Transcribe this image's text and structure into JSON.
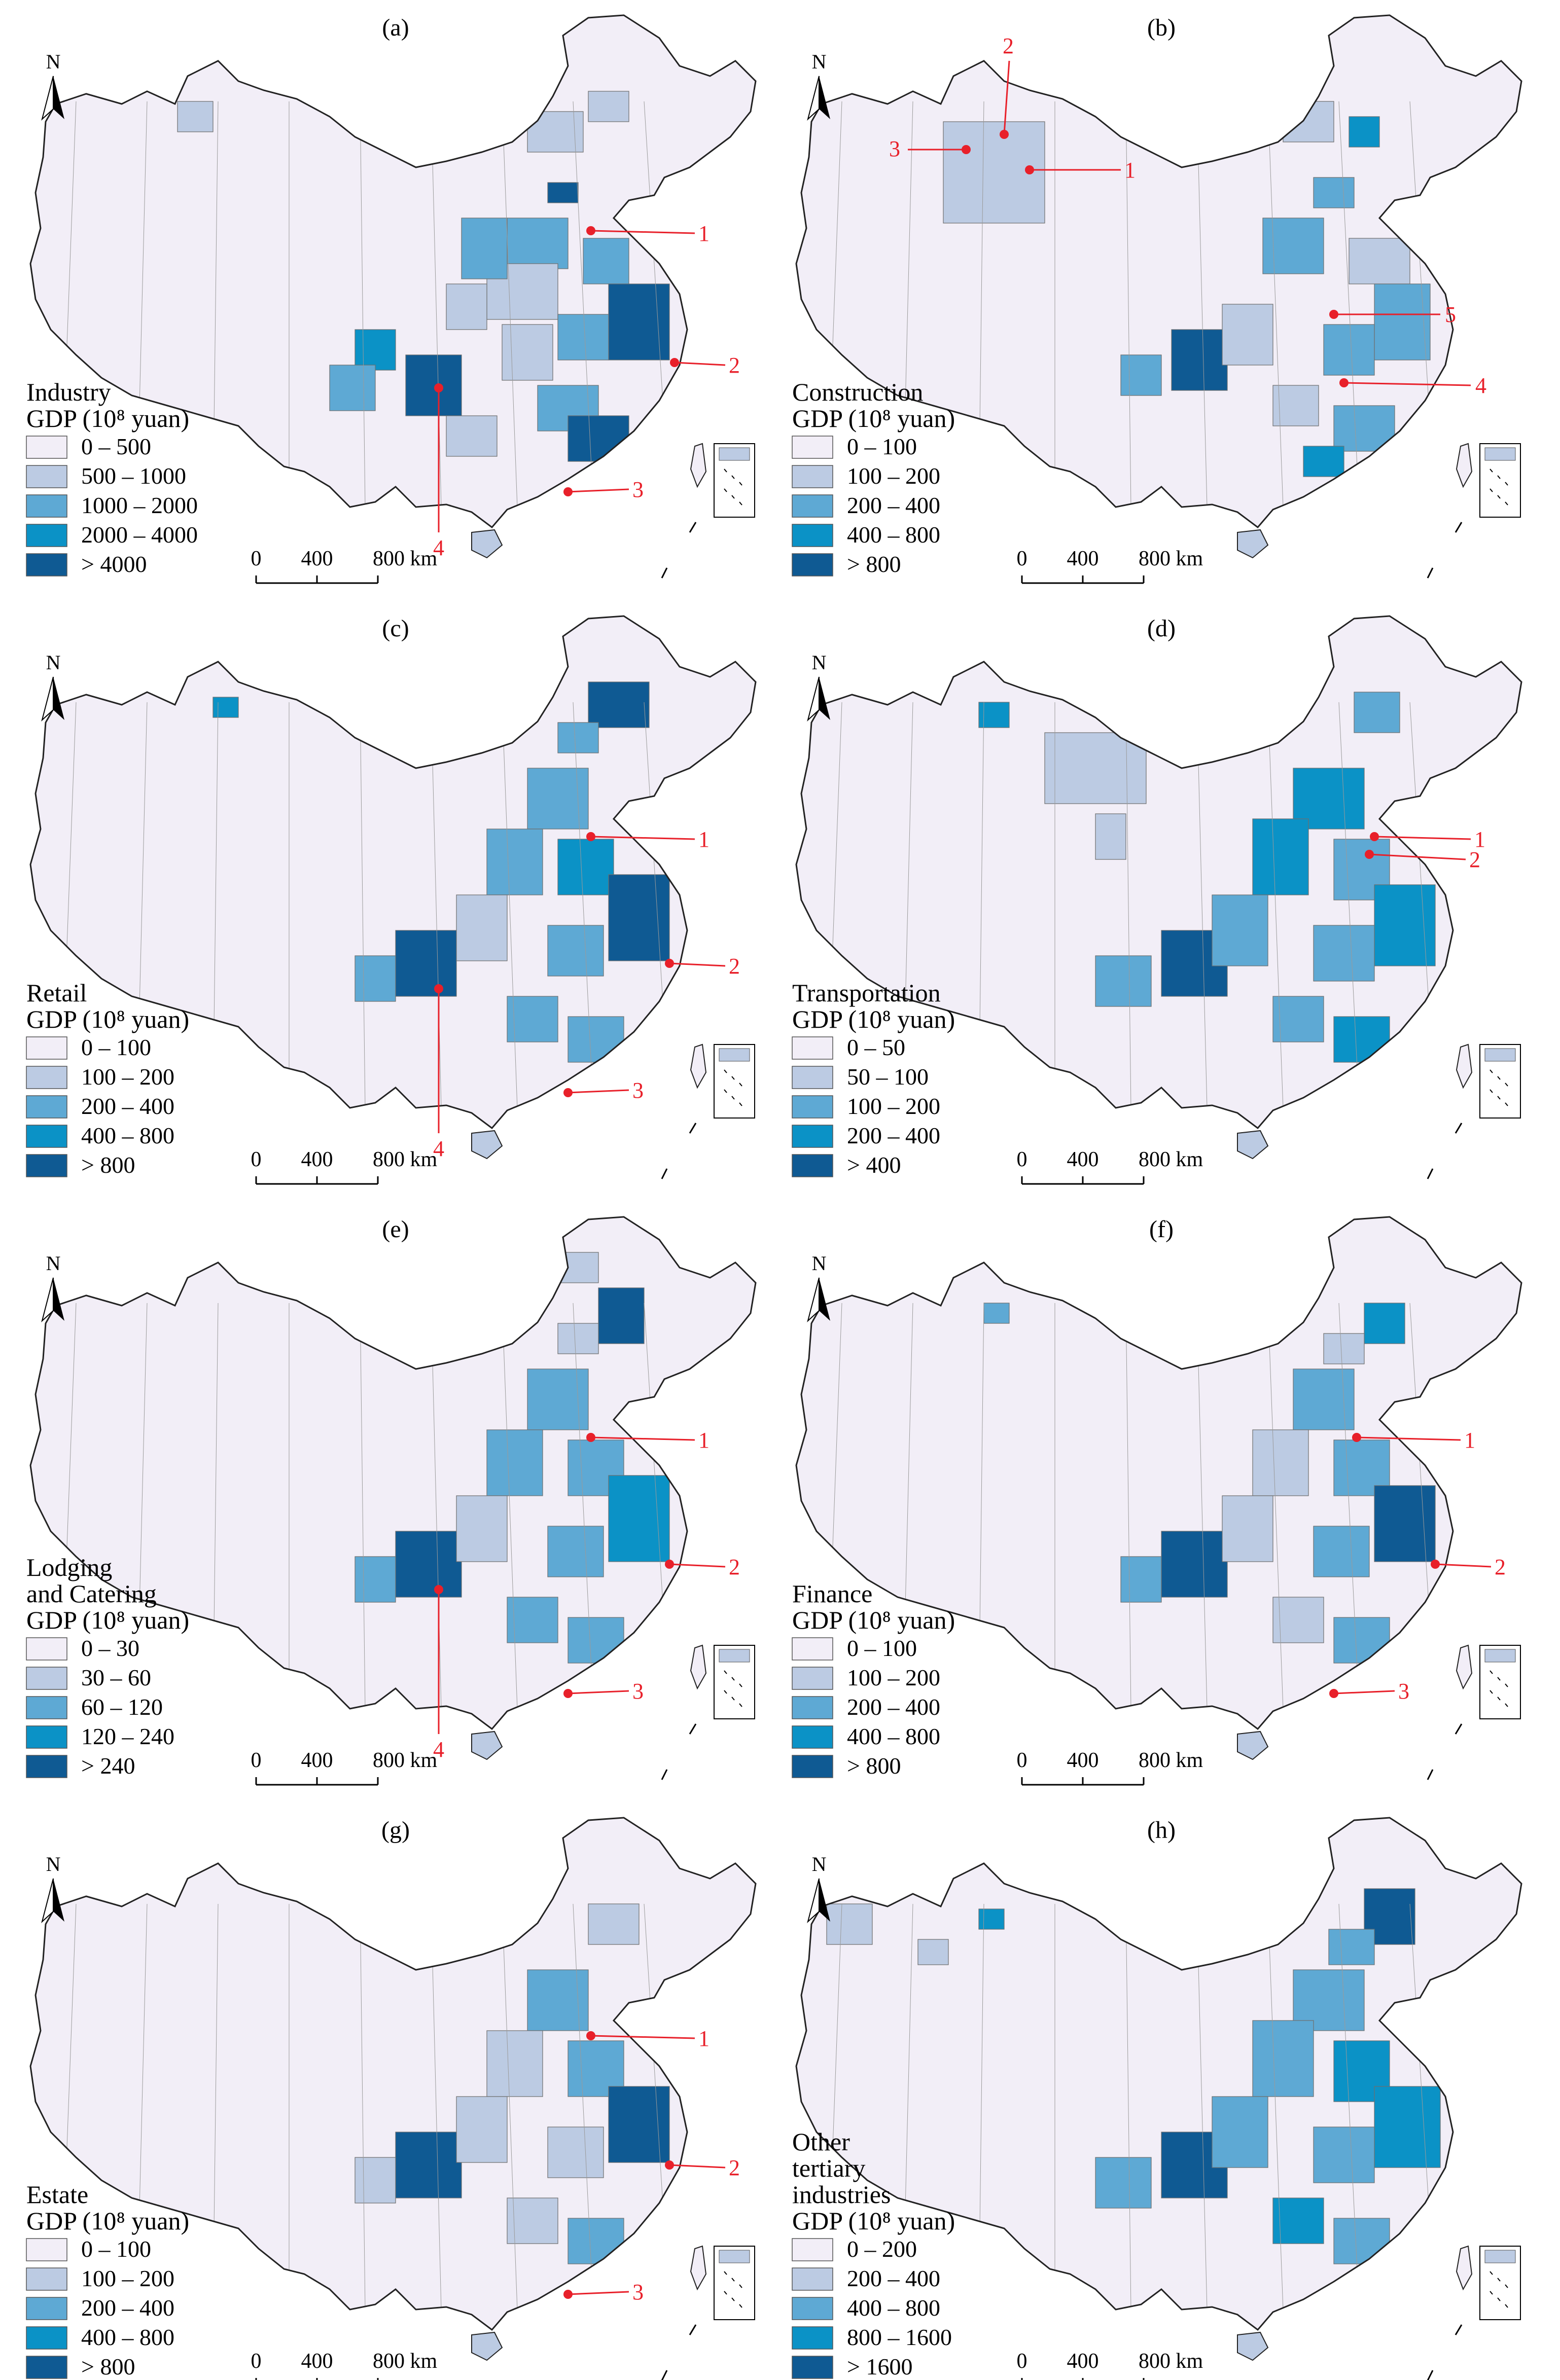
{
  "colors": {
    "class_1": "#f2eef7",
    "class_2": "#bccbe3",
    "class_3": "#5ea9d4",
    "class_4": "#0b92c6",
    "class_5": "#0f5a93",
    "boundary": "#6e6e6e",
    "callout": "#e8202a"
  },
  "north_arrow_label": "N",
  "scale_bar": {
    "labels": [
      "0",
      "400",
      "800 km"
    ]
  },
  "panels": [
    {
      "id": "a",
      "label": "(a)",
      "legend_title": [
        "Industry",
        "GDP (10⁸ yuan)"
      ],
      "classes": [
        "0 – 500",
        "500 – 1000",
        "1000 – 2000",
        "2000 – 4000",
        "> 4000"
      ],
      "callouts": [
        "1",
        "2",
        "3",
        "4"
      ]
    },
    {
      "id": "b",
      "label": "(b)",
      "legend_title": [
        "Construction",
        "GDP (10⁸ yuan)"
      ],
      "classes": [
        "0 – 100",
        "100 – 200",
        "200 – 400",
        "400 – 800",
        "> 800"
      ],
      "callouts": [
        "1",
        "2",
        "3",
        "4",
        "5"
      ]
    },
    {
      "id": "c",
      "label": "(c)",
      "legend_title": [
        "Retail",
        "GDP (10⁸ yuan)"
      ],
      "classes": [
        "0 – 100",
        "100 – 200",
        "200 – 400",
        "400 – 800",
        "> 800"
      ],
      "callouts": [
        "1",
        "2",
        "3",
        "4"
      ]
    },
    {
      "id": "d",
      "label": "(d)",
      "legend_title": [
        "Transportation",
        "GDP (10⁸ yuan)"
      ],
      "classes": [
        "0 – 50",
        "50 – 100",
        "100 – 200",
        "200 – 400",
        "> 400"
      ],
      "callouts": [
        "1",
        "2"
      ]
    },
    {
      "id": "e",
      "label": "(e)",
      "legend_title": [
        "Lodging",
        "and Catering",
        "GDP (10⁸ yuan)"
      ],
      "classes": [
        "0 – 30",
        "30 – 60",
        "60 – 120",
        "120 – 240",
        "> 240"
      ],
      "callouts": [
        "1",
        "2",
        "3",
        "4"
      ]
    },
    {
      "id": "f",
      "label": "(f)",
      "legend_title": [
        "Finance",
        "GDP (10⁸ yuan)"
      ],
      "classes": [
        "0 – 100",
        "100 – 200",
        "200 – 400",
        "400 – 800",
        "> 800"
      ],
      "callouts": [
        "1",
        "2",
        "3"
      ]
    },
    {
      "id": "g",
      "label": "(g)",
      "legend_title": [
        "Estate",
        "GDP (10⁸ yuan)"
      ],
      "classes": [
        "0 – 100",
        "100 – 200",
        "200 – 400",
        "400 – 800",
        "> 800"
      ],
      "callouts": [
        "1",
        "2",
        "3"
      ]
    },
    {
      "id": "h",
      "label": "(h)",
      "legend_title": [
        "Other",
        "tertiary",
        "industries",
        "GDP (10⁸ yuan)"
      ],
      "classes": [
        "0 – 200",
        "200 – 400",
        "400 – 800",
        "800 – 1600",
        "> 1600"
      ],
      "callouts": []
    }
  ]
}
